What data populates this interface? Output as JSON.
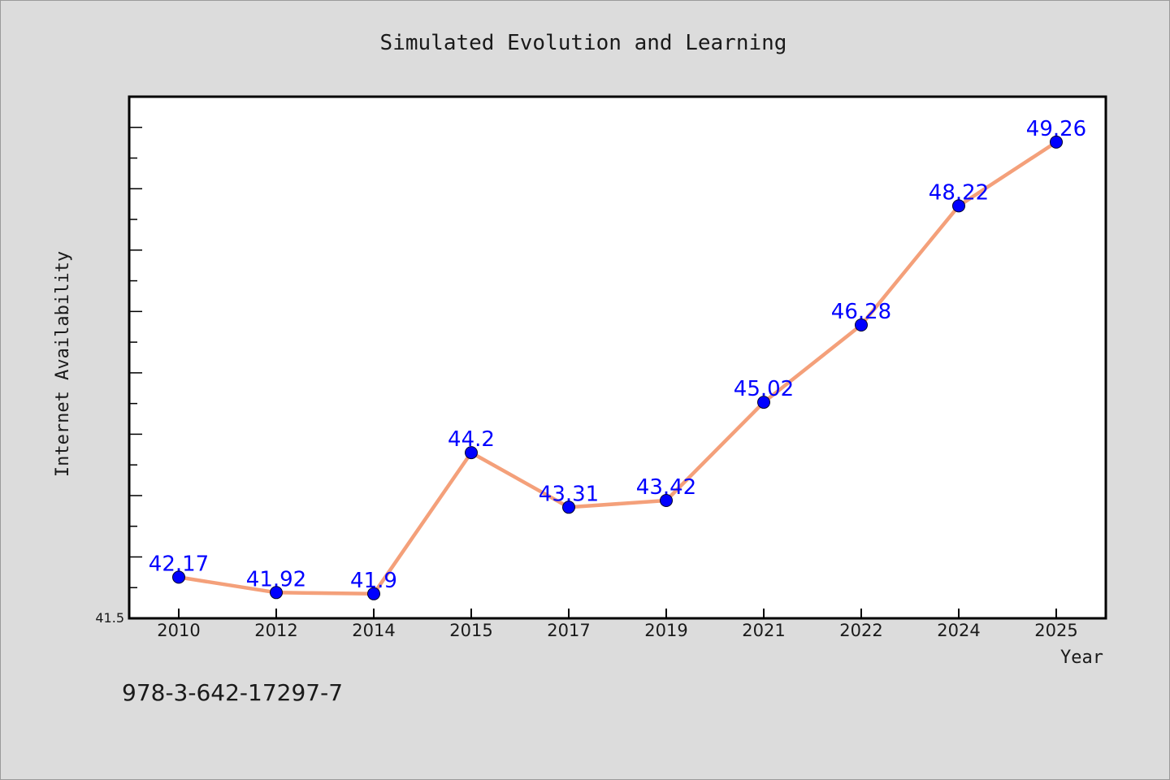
{
  "figure": {
    "footnote": "978-3-642-17297-7",
    "background": "#dcdcdc"
  },
  "chart_data": {
    "type": "line",
    "title": "Simulated Evolution and Learning",
    "xlabel": "Year",
    "ylabel": "Internet Availability",
    "categories": [
      "2010",
      "2012",
      "2014",
      "2015",
      "2017",
      "2019",
      "2021",
      "2022",
      "2024",
      "2025"
    ],
    "series": [
      {
        "values": [
          42.17,
          41.92,
          41.9,
          44.2,
          43.31,
          43.42,
          45.02,
          46.28,
          48.22,
          49.26
        ],
        "labels": [
          "42.17",
          "41.92",
          "41.9",
          "44.2",
          "43.31",
          "43.42",
          "45.02",
          "46.28",
          "48.22",
          "49.26"
        ],
        "line_color": "#f4a07a",
        "marker_color": "#0000ff"
      }
    ],
    "ylim": [
      41.5,
      50.0
    ],
    "y_min_label": "41.5",
    "grid": false,
    "legend": "none"
  }
}
